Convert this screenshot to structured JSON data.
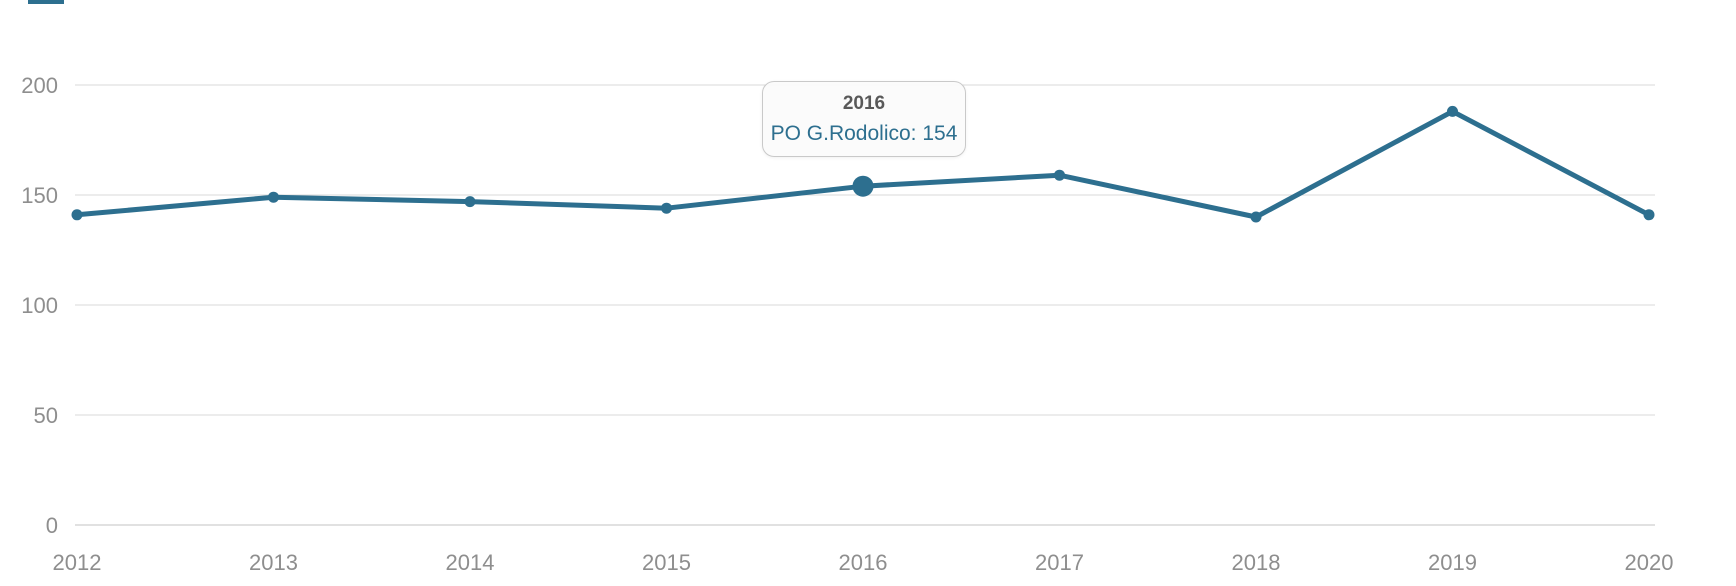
{
  "page": {
    "background": "#ffffff"
  },
  "decor": {
    "top_artifact_color": "#2d6f8f"
  },
  "chart_data": {
    "type": "line",
    "title": "",
    "xlabel": "",
    "ylabel": "",
    "categories": [
      "2012",
      "2013",
      "2014",
      "2015",
      "2016",
      "2017",
      "2018",
      "2019",
      "2020"
    ],
    "series": [
      {
        "name": "PO G.Rodolico",
        "color": "#2d6f8f",
        "values": [
          141,
          149,
          147,
          144,
          154,
          159,
          140,
          188,
          141
        ]
      }
    ],
    "ylim": [
      0,
      200
    ],
    "yticks": [
      0,
      50,
      100,
      150,
      200
    ],
    "grid": true,
    "legend": "none",
    "hover": {
      "category": "2016",
      "series": "PO G.Rodolico",
      "value": 154
    },
    "colors": {
      "grid": "#d9d9d9",
      "axis": "#c3c3c3",
      "tick_label": "#8e8e8e"
    }
  },
  "tooltip": {
    "title": "2016",
    "body": "PO G.Rodolico: 154"
  }
}
